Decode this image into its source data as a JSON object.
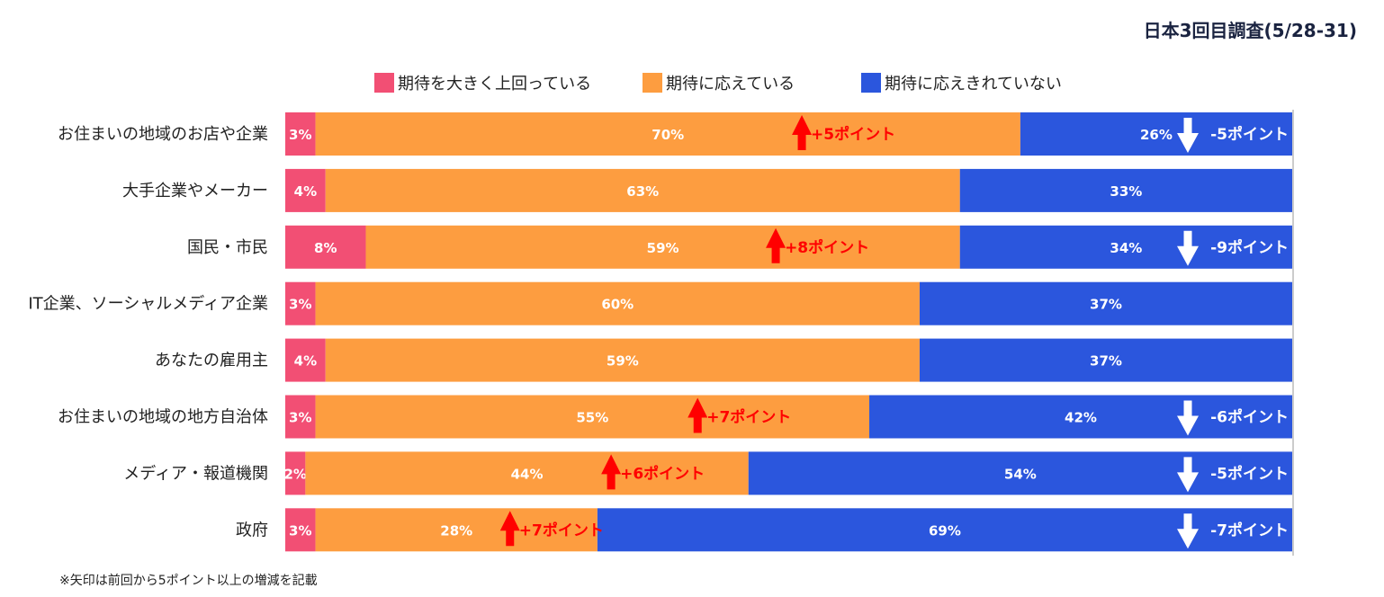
{
  "header": {
    "title": "日本3回目調査(5/28-31)"
  },
  "footnote": "※矢印は前回から5ポイント以上の増減を記載",
  "colors": {
    "exceed": "#f24f74",
    "meet": "#fd9d40",
    "notmeet": "#2b56dd",
    "up_arrow": "#ff0000",
    "down_arrow": "#ffffff",
    "axis": "#999999"
  },
  "chart_data": {
    "type": "bar",
    "stacked": true,
    "orientation": "horizontal",
    "title": "日本3回目調査(5/28-31)",
    "legend_position": "top",
    "categories": [
      "お住まいの地域のお店や企業",
      "大手企業やメーカー",
      "国民・市民",
      "IT企業、ソーシャルメディア企業",
      "あなたの雇用主",
      "お住まいの地域の地方自治体",
      "メディア・報道機関",
      "政府"
    ],
    "series": [
      {
        "name": "期待を大きく上回っている",
        "values": [
          3,
          4,
          8,
          3,
          4,
          3,
          2,
          3
        ],
        "labels": [
          "3%",
          "4%",
          "8%",
          "3%",
          "4%",
          "3%",
          "2%",
          "3%"
        ]
      },
      {
        "name": "期待に応えている",
        "values": [
          70,
          63,
          59,
          60,
          59,
          55,
          44,
          28
        ],
        "labels": [
          "70%",
          "63%",
          "59%",
          "60%",
          "59%",
          "55%",
          "44%",
          "28%"
        ]
      },
      {
        "name": "期待に応えきれていない",
        "values": [
          26,
          33,
          34,
          37,
          37,
          42,
          54,
          69
        ],
        "labels": [
          "26%",
          "33%",
          "34%",
          "37%",
          "37%",
          "42%",
          "54%",
          "69%"
        ]
      }
    ],
    "changes_meet": [
      "+5ポイント",
      "",
      "+8ポイント",
      "",
      "",
      "+7ポイント",
      "+6ポイント",
      "+7ポイント"
    ],
    "changes_notmeet": [
      "-5ポイント",
      "",
      "-9ポイント",
      "",
      "",
      "-6ポイント",
      "-5ポイント",
      "-7ポイント"
    ],
    "xlim": [
      0,
      100
    ]
  }
}
